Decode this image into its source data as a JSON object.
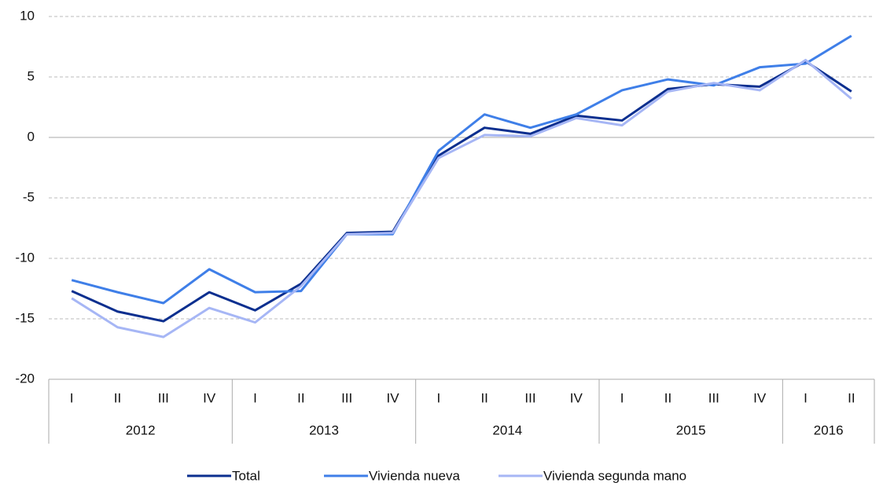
{
  "chart_data": {
    "type": "line",
    "groups": [
      {
        "name": "2012",
        "categories": [
          "I",
          "II",
          "III",
          "IV"
        ]
      },
      {
        "name": "2013",
        "categories": [
          "I",
          "II",
          "III",
          "IV"
        ]
      },
      {
        "name": "2014",
        "categories": [
          "I",
          "II",
          "III",
          "IV"
        ]
      },
      {
        "name": "2015",
        "categories": [
          "I",
          "II",
          "III",
          "IV"
        ]
      },
      {
        "name": "2016",
        "categories": [
          "I",
          "II"
        ]
      }
    ],
    "series": [
      {
        "name": "Total",
        "color": "#0b2f8f",
        "values": [
          -12.7,
          -14.4,
          -15.2,
          -12.8,
          -14.3,
          -12.1,
          -7.9,
          -7.8,
          -1.5,
          0.8,
          0.3,
          1.8,
          1.4,
          4.0,
          4.4,
          4.2,
          6.3,
          3.8
        ]
      },
      {
        "name": "Vivienda nueva",
        "color": "#3f7fe8",
        "values": [
          -11.8,
          -12.8,
          -13.7,
          -10.9,
          -12.8,
          -12.7,
          -8.0,
          -8.0,
          -1.1,
          1.9,
          0.8,
          1.9,
          3.9,
          4.8,
          4.3,
          5.8,
          6.1,
          8.4
        ]
      },
      {
        "name": "Vivienda segunda mano",
        "color": "#a6b6f5",
        "values": [
          -13.3,
          -15.7,
          -16.5,
          -14.1,
          -15.3,
          -12.3,
          -8.0,
          -7.9,
          -1.7,
          0.2,
          0.1,
          1.6,
          1.0,
          3.8,
          4.5,
          3.9,
          6.4,
          3.2
        ]
      }
    ],
    "ylim": [
      -20,
      10
    ],
    "yticks": [
      10,
      5,
      0,
      -5,
      -10,
      -15,
      -20
    ],
    "grid": true,
    "legend": "bottom"
  }
}
